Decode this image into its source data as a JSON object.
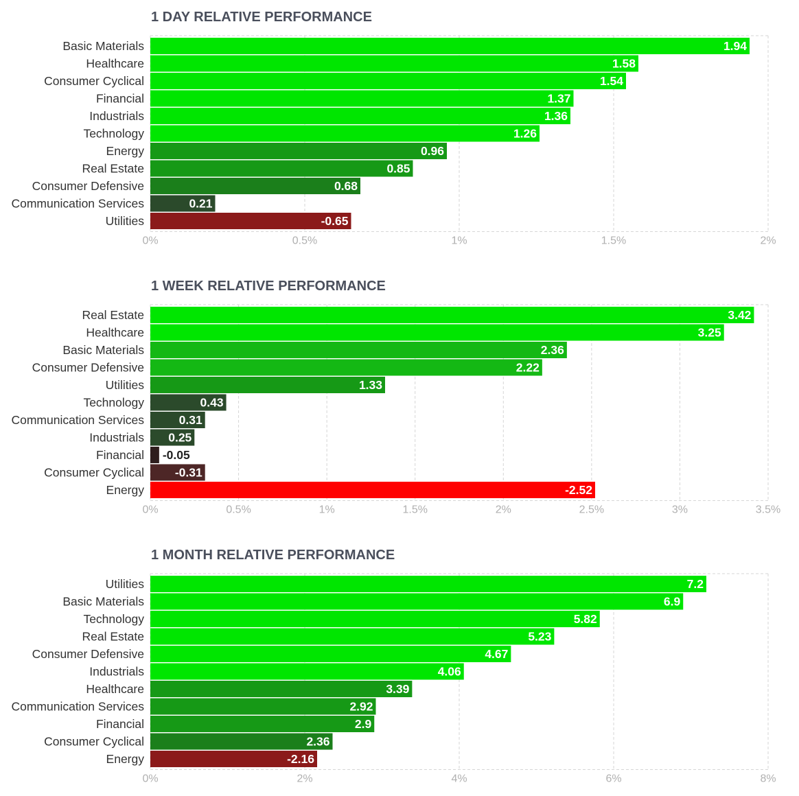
{
  "colors": {
    "strong_positive": "#00e600",
    "mid_positive": "#169916",
    "weak_positive": "#2b4a2b",
    "weak_negative": "#2e1d1d",
    "mid_negative": "#4d2626",
    "strong_negative": "#ff0000",
    "negative_dark": "#8b1a1a",
    "title_color": "#4a4f5c",
    "tick_color": "#b0b0b0",
    "grid_color": "#d6d6d6"
  },
  "chart_data": [
    {
      "type": "bar",
      "orientation": "horizontal",
      "title": "1 DAY RELATIVE PERFORMANCE",
      "categories": [
        "Basic Materials",
        "Healthcare",
        "Consumer Cyclical",
        "Financial",
        "Industrials",
        "Technology",
        "Energy",
        "Real Estate",
        "Consumer Defensive",
        "Communication Services",
        "Utilities"
      ],
      "values": [
        1.94,
        1.58,
        1.54,
        1.37,
        1.36,
        1.26,
        0.96,
        0.85,
        0.68,
        0.21,
        -0.65
      ],
      "value_labels": [
        "1.94",
        "1.58",
        "1.54",
        "1.37",
        "1.36",
        "1.26",
        "0.96",
        "0.85",
        "0.68",
        "0.21",
        "-0.65"
      ],
      "bar_colors": [
        "#00e600",
        "#00e600",
        "#00e600",
        "#00e600",
        "#00e600",
        "#00e600",
        "#169916",
        "#169916",
        "#1b7f1b",
        "#2b4a2b",
        "#8b1a1a"
      ],
      "xlim": [
        0,
        2
      ],
      "xticks": [
        "0%",
        "0.5%",
        "1%",
        "1.5%",
        "2%"
      ],
      "grid": true,
      "note": "bars drawn by absolute value"
    },
    {
      "type": "bar",
      "orientation": "horizontal",
      "title": "1 WEEK RELATIVE PERFORMANCE",
      "categories": [
        "Real Estate",
        "Healthcare",
        "Basic Materials",
        "Consumer Defensive",
        "Utilities",
        "Technology",
        "Communication Services",
        "Industrials",
        "Financial",
        "Consumer Cyclical",
        "Energy"
      ],
      "values": [
        3.42,
        3.25,
        2.36,
        2.22,
        1.33,
        0.43,
        0.31,
        0.25,
        -0.05,
        -0.31,
        -2.52
      ],
      "value_labels": [
        "3.42",
        "3.25",
        "2.36",
        "2.22",
        "1.33",
        "0.43",
        "0.31",
        "0.25",
        "-0.05",
        "-0.31",
        "-2.52"
      ],
      "bar_colors": [
        "#00e600",
        "#00e600",
        "#14b814",
        "#14b814",
        "#169916",
        "#2b4a2b",
        "#2b4a2b",
        "#2b4a2b",
        "#2e1d1d",
        "#4d2626",
        "#ff0000"
      ],
      "xlim": [
        0,
        3.5
      ],
      "xticks": [
        "0%",
        "0.5%",
        "1%",
        "1.5%",
        "2%",
        "2.5%",
        "3%",
        "3.5%"
      ],
      "grid": true
    },
    {
      "type": "bar",
      "orientation": "horizontal",
      "title": "1 MONTH RELATIVE PERFORMANCE",
      "categories": [
        "Utilities",
        "Basic Materials",
        "Technology",
        "Real Estate",
        "Consumer Defensive",
        "Industrials",
        "Healthcare",
        "Communication Services",
        "Financial",
        "Consumer Cyclical",
        "Energy"
      ],
      "values": [
        7.2,
        6.9,
        5.82,
        5.23,
        4.67,
        4.06,
        3.39,
        2.92,
        2.9,
        2.36,
        -2.16
      ],
      "value_labels": [
        "7.2",
        "6.9",
        "5.82",
        "5.23",
        "4.67",
        "4.06",
        "3.39",
        "2.92",
        "2.9",
        "2.36",
        "-2.16"
      ],
      "bar_colors": [
        "#00e600",
        "#00e600",
        "#00e600",
        "#00e600",
        "#00e600",
        "#00e600",
        "#169916",
        "#169916",
        "#169916",
        "#1b7f1b",
        "#8b1a1a"
      ],
      "xlim": [
        0,
        8
      ],
      "xticks": [
        "0%",
        "2%",
        "4%",
        "6%",
        "8%"
      ],
      "grid": true
    }
  ]
}
